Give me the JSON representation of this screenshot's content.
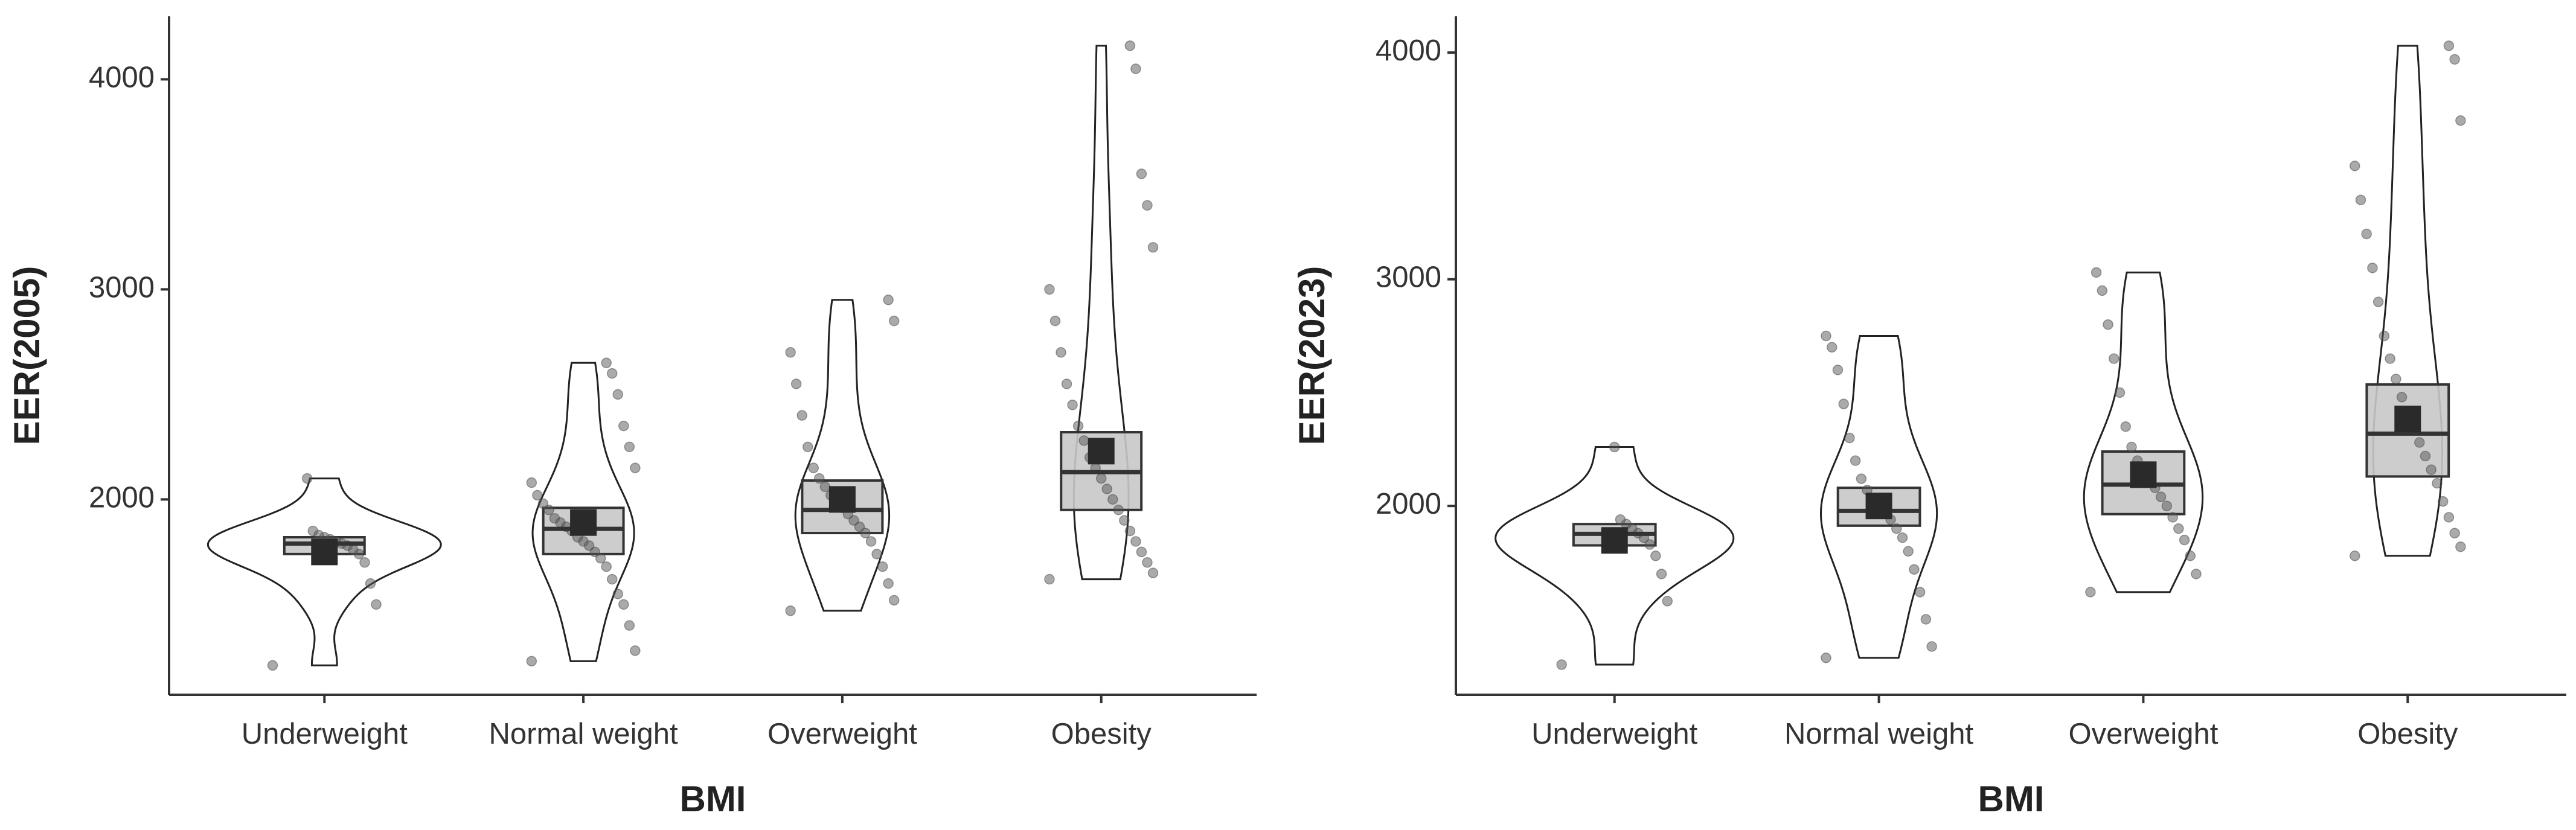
{
  "chart_data": [
    {
      "type": "violin",
      "x_label": "BMI",
      "y_label": "EER(2005)",
      "categories": [
        "Underweight",
        "Normal weight",
        "Overweight",
        "Obesity"
      ],
      "ylim": [
        1070,
        4300
      ],
      "yticks": [
        2000,
        3000,
        4000
      ],
      "groups": [
        {
          "q1": 1740,
          "median": 1790,
          "q3": 1820,
          "mean": 1750,
          "points": [
            1210,
            1500,
            1600,
            1700,
            1740,
            1760,
            1780,
            1790,
            1800,
            1810,
            1820,
            1830,
            1850,
            2100
          ]
        },
        {
          "q1": 1740,
          "median": 1860,
          "q3": 1960,
          "mean": 1890,
          "points": [
            1230,
            1280,
            1400,
            1500,
            1550,
            1620,
            1680,
            1720,
            1750,
            1780,
            1800,
            1820,
            1850,
            1870,
            1890,
            1910,
            1950,
            1980,
            2020,
            2080,
            2150,
            2250,
            2350,
            2500,
            2600,
            2650
          ]
        },
        {
          "q1": 1840,
          "median": 1950,
          "q3": 2090,
          "mean": 2000,
          "points": [
            1470,
            1520,
            1600,
            1680,
            1740,
            1800,
            1840,
            1870,
            1900,
            1930,
            1960,
            1990,
            2020,
            2060,
            2100,
            2150,
            2250,
            2400,
            2550,
            2700,
            2850,
            2950
          ]
        },
        {
          "q1": 1950,
          "median": 2130,
          "q3": 2320,
          "mean": 2230,
          "points": [
            1620,
            1650,
            1700,
            1750,
            1800,
            1850,
            1900,
            1950,
            2000,
            2050,
            2100,
            2150,
            2200,
            2280,
            2350,
            2450,
            2550,
            2700,
            2850,
            3000,
            3200,
            3400,
            3550,
            4050,
            4160
          ]
        }
      ]
    },
    {
      "type": "violin",
      "x_label": "BMI",
      "y_label": "EER(2023)",
      "categories": [
        "Underweight",
        "Normal weight",
        "Overweight",
        "Obesity"
      ],
      "ylim": [
        1167,
        4160
      ],
      "yticks": [
        2000,
        3000,
        4000
      ],
      "groups": [
        {
          "q1": 1826,
          "median": 1877,
          "q3": 1920,
          "mean": 1848,
          "points": [
            1300,
            1580,
            1700,
            1780,
            1830,
            1860,
            1880,
            1900,
            1920,
            1940,
            2260
          ]
        },
        {
          "q1": 1913,
          "median": 1978,
          "q3": 2080,
          "mean": 2000,
          "points": [
            1330,
            1380,
            1500,
            1620,
            1720,
            1800,
            1860,
            1900,
            1940,
            1970,
            2000,
            2030,
            2070,
            2120,
            2200,
            2300,
            2450,
            2600,
            2700,
            2750
          ]
        },
        {
          "q1": 1964,
          "median": 2094,
          "q3": 2240,
          "mean": 2138,
          "points": [
            1620,
            1700,
            1780,
            1850,
            1900,
            1950,
            2000,
            2040,
            2080,
            2120,
            2160,
            2200,
            2260,
            2350,
            2500,
            2650,
            2800,
            2950,
            3030
          ]
        },
        {
          "q1": 2130,
          "median": 2319,
          "q3": 2536,
          "mean": 2384,
          "points": [
            1780,
            1820,
            1880,
            1950,
            2020,
            2100,
            2160,
            2220,
            2280,
            2340,
            2400,
            2480,
            2560,
            2650,
            2750,
            2900,
            3050,
            3200,
            3350,
            3500,
            3700,
            3970,
            4030
          ]
        }
      ]
    }
  ]
}
